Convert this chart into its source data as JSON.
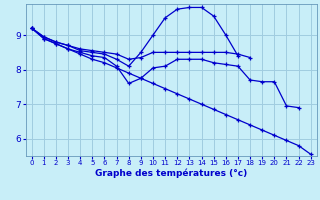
{
  "xlabel": "Graphe des températures (°c)",
  "background_color": "#c8eef8",
  "grid_color": "#a0cce0",
  "line_color": "#0000cc",
  "x_ticks": [
    0,
    1,
    2,
    3,
    4,
    5,
    6,
    7,
    8,
    9,
    10,
    11,
    12,
    13,
    14,
    15,
    16,
    17,
    18,
    19,
    20,
    21,
    22,
    23
  ],
  "xlim": [
    -0.5,
    23.5
  ],
  "ylim": [
    5.5,
    9.9
  ],
  "y_ticks": [
    6,
    7,
    8,
    9
  ],
  "lines": [
    {
      "x": [
        0,
        1,
        2,
        3,
        4,
        5,
        6,
        7,
        8,
        9,
        10,
        11,
        12,
        13,
        14,
        15,
        16,
        17,
        18
      ],
      "y": [
        9.2,
        8.95,
        8.8,
        8.7,
        8.6,
        8.55,
        8.5,
        8.45,
        8.3,
        8.35,
        8.5,
        8.5,
        8.5,
        8.5,
        8.5,
        8.5,
        8.5,
        8.45,
        8.35
      ]
    },
    {
      "x": [
        0,
        1,
        2,
        3,
        4,
        5,
        6,
        7,
        8,
        9,
        10,
        11,
        12,
        13,
        14,
        15,
        16,
        17
      ],
      "y": [
        9.2,
        8.95,
        8.8,
        8.7,
        8.55,
        8.5,
        8.45,
        8.3,
        8.1,
        8.5,
        9.0,
        9.5,
        9.75,
        9.8,
        9.8,
        9.55,
        9.0,
        8.4
      ]
    },
    {
      "x": [
        0,
        1,
        2,
        3,
        4,
        5,
        6,
        7,
        8,
        9,
        10,
        11,
        12,
        13,
        14,
        15,
        16,
        17,
        18,
        19,
        20,
        21,
        22,
        23
      ],
      "y": [
        9.2,
        8.9,
        8.75,
        8.6,
        8.45,
        8.3,
        8.2,
        8.05,
        7.9,
        7.75,
        7.6,
        7.45,
        7.3,
        7.15,
        7.0,
        6.85,
        6.7,
        6.55,
        6.4,
        6.25,
        6.1,
        5.95,
        5.8,
        5.55
      ]
    },
    {
      "x": [
        0,
        1,
        2,
        3,
        4,
        5,
        6,
        7,
        8,
        9,
        10,
        11,
        12,
        13,
        14,
        15,
        16,
        17,
        18,
        19,
        20,
        21,
        22
      ],
      "y": [
        9.2,
        8.9,
        8.75,
        8.6,
        8.5,
        8.4,
        8.35,
        8.1,
        7.6,
        7.75,
        8.05,
        8.1,
        8.3,
        8.3,
        8.3,
        8.2,
        8.15,
        8.1,
        7.7,
        7.65,
        7.65,
        6.95,
        6.9
      ]
    }
  ]
}
